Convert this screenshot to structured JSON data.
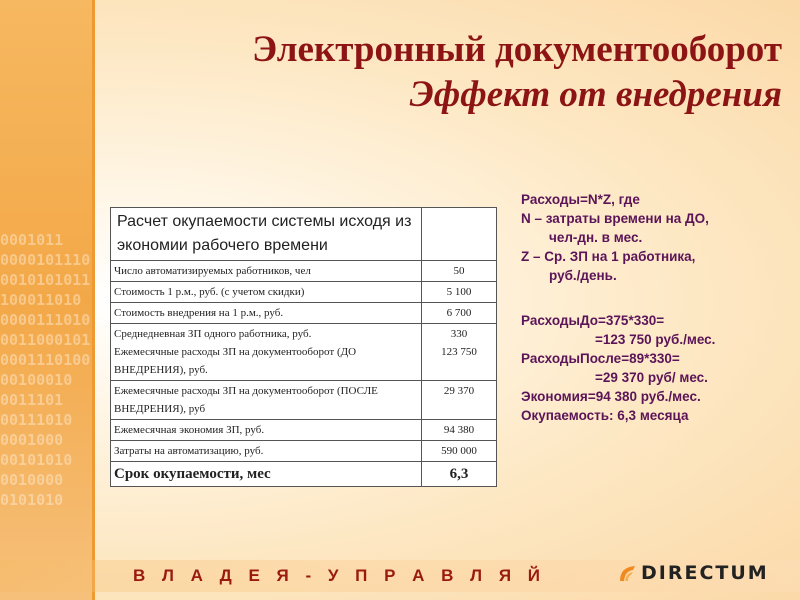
{
  "title": {
    "line1": "Электронный документооборот",
    "line2": "Эффект от внедрения"
  },
  "table": {
    "header": "Расчет окупаемости системы исходя из экономии рабочего времени",
    "rows": [
      {
        "label": "Число автоматизируемых работников, чел",
        "value": "50"
      },
      {
        "label": "Стоимость 1 р.м., руб. (с учетом скидки)",
        "value": "5 100"
      },
      {
        "label": "Стоимость внедрения на 1 р.м., руб.",
        "value": "6 700"
      },
      {
        "label": "Среднедневная ЗП одного работника, руб.",
        "value": "330"
      },
      {
        "label": "Ежемесячные расходы ЗП на документооборот (ДО ВНЕДРЕНИЯ), руб.",
        "value": "123 750"
      },
      {
        "label": "Ежемесячные расходы ЗП на документооборот (ПОСЛЕ ВНЕДРЕНИЯ), руб",
        "value": "29 370"
      },
      {
        "label": "Ежемесячная экономия ЗП, руб.",
        "value": "94 380"
      },
      {
        "label": "Затраты на автоматизацию, руб.",
        "value": "590 000"
      }
    ],
    "total": {
      "label": "Срок окупаемости, мес",
      "value": "6,3"
    }
  },
  "side": {
    "formula": "Расходы=N*Z, где",
    "n_line1": "N – затраты времени на ДО,",
    "n_line2": "чел-дн. в мес.",
    "z_line1": "Z – Ср. ЗП на 1 работника,",
    "z_line2": "руб./день.",
    "before_line1": "РасходыДо=375*330=",
    "before_line2": "=123 750 руб./мес.",
    "after_line1": "РасходыПосле=89*330=",
    "after_line2": "=29 370 руб/ мес.",
    "savings": "Экономия=94 380 руб./мес.",
    "payback": "Окупаемость: 6,3 месяца"
  },
  "footer": {
    "motto": "В Л А Д Е Я - У П Р А В Л Я Й",
    "logo": "DIRECTUM"
  },
  "colors": {
    "title": "#8c1414",
    "side_text": "#5b1457",
    "accent_orange": "#f3a848"
  }
}
